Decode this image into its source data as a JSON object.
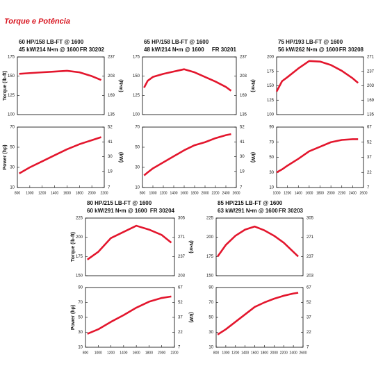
{
  "title": "Torque e Potência",
  "chart_data": [
    {
      "type": "line",
      "title": "60 HP/158 LB-FT @ 1600",
      "subtitle": "45 kW/214 N•m @ 1600",
      "model": "FR 30202",
      "ylabel": "Torque (lb-ft)",
      "y2label": "(N•m)",
      "color": "#e3162d",
      "x": [
        830,
        1000,
        1200,
        1400,
        1600,
        1800,
        2000,
        2150
      ],
      "values": [
        153,
        154,
        155,
        156,
        157,
        155,
        150,
        145
      ],
      "xlim": [
        800,
        2200
      ],
      "ylim": [
        100,
        175
      ],
      "yticks": [
        100,
        125,
        150,
        175
      ],
      "y2lim": [
        135,
        237
      ],
      "y2ticks": [
        135,
        169,
        203,
        237
      ]
    },
    {
      "type": "line",
      "ylabel": "Power (hp)",
      "y2label": "(kW)",
      "color": "#e3162d",
      "x": [
        830,
        1000,
        1200,
        1400,
        1600,
        1800,
        2000,
        2150
      ],
      "values": [
        24,
        30,
        36,
        42,
        48,
        53,
        57,
        60
      ],
      "xlim": [
        800,
        2200
      ],
      "xticks": [
        800,
        1000,
        1200,
        1400,
        1600,
        1800,
        2000,
        2200
      ],
      "ylim": [
        10,
        70
      ],
      "yticks": [
        10,
        30,
        50,
        70
      ],
      "y2lim": [
        7,
        52
      ],
      "y2ticks": [
        7,
        19,
        30,
        41,
        52
      ]
    },
    {
      "type": "line",
      "title": "65 HP/158 LB-FT @ 1600",
      "subtitle": "48 kW/214 N•m @ 1600",
      "model": "FR 30201",
      "y2label": "(N•m)",
      "color": "#e3162d",
      "x": [
        830,
        900,
        1000,
        1200,
        1400,
        1600,
        1800,
        2000,
        2200,
        2400,
        2500
      ],
      "values": [
        135,
        144,
        149,
        153,
        156,
        159,
        155,
        149,
        143,
        136,
        131
      ],
      "xlim": [
        800,
        2600
      ],
      "ylim": [
        100,
        175
      ],
      "yticks": [
        100,
        125,
        150,
        175
      ],
      "y2lim": [
        135,
        237
      ],
      "y2ticks": [
        135,
        169,
        203,
        237
      ]
    },
    {
      "type": "line",
      "y2label": "(kW)",
      "color": "#e3162d",
      "x": [
        830,
        900,
        1000,
        1200,
        1400,
        1600,
        1800,
        2000,
        2200,
        2400,
        2500
      ],
      "values": [
        22,
        25,
        29,
        35,
        41,
        47,
        52,
        55,
        59,
        62,
        63
      ],
      "xlim": [
        800,
        2600
      ],
      "xticks": [
        800,
        1000,
        1200,
        1400,
        1600,
        1800,
        2000,
        2200,
        2400,
        2600
      ],
      "ylim": [
        10,
        70
      ],
      "yticks": [
        10,
        30,
        50,
        70
      ],
      "y2lim": [
        7,
        52
      ],
      "y2ticks": [
        7,
        19,
        30,
        41,
        52
      ]
    },
    {
      "type": "line",
      "title": "75 HP/193 LB-FT @ 1600",
      "subtitle": "56 kW/262 N•m @ 1600",
      "model": "FR 30208",
      "color": "#e3162d",
      "x": [
        1000,
        1100,
        1200,
        1400,
        1600,
        1800,
        2000,
        2200,
        2400,
        2500
      ],
      "values": [
        140,
        158,
        165,
        180,
        193,
        192,
        186,
        176,
        163,
        155
      ],
      "xlim": [
        1000,
        2600
      ],
      "ylim": [
        100,
        200
      ],
      "yticks": [
        100,
        125,
        150,
        175,
        200
      ],
      "y2lim": [
        135,
        271
      ],
      "y2ticks": [
        135,
        169,
        203,
        237,
        271
      ]
    },
    {
      "type": "line",
      "color": "#e3162d",
      "x": [
        1000,
        1100,
        1200,
        1400,
        1600,
        1800,
        2000,
        2200,
        2400,
        2500
      ],
      "values": [
        30,
        34,
        39,
        48,
        58,
        64,
        70,
        73,
        74,
        74
      ],
      "xlim": [
        1000,
        2600
      ],
      "xticks": [
        1000,
        1200,
        1400,
        1600,
        1800,
        2000,
        2200,
        2400,
        2600
      ],
      "ylim": [
        10,
        90
      ],
      "yticks": [
        10,
        30,
        50,
        70,
        90
      ],
      "y2lim": [
        7,
        67
      ],
      "y2ticks": [
        7,
        22,
        37,
        52,
        67
      ]
    },
    {
      "type": "line",
      "title": "80 HP/215 LB-FT @ 1600",
      "subtitle": "60 kW/291 N•m @ 1600",
      "model": "FR 30204",
      "ylabel": "Torque (lb-ft)",
      "y2label": "(N•m)",
      "color": "#e3162d",
      "x": [
        830,
        1000,
        1200,
        1400,
        1600,
        1800,
        2000,
        2150
      ],
      "values": [
        171,
        181,
        199,
        207,
        215,
        210,
        203,
        193
      ],
      "xlim": [
        800,
        2200
      ],
      "ylim": [
        150,
        225
      ],
      "yticks": [
        150,
        175,
        200,
        225
      ],
      "y2lim": [
        203,
        305
      ],
      "y2ticks": [
        203,
        237,
        271,
        305
      ]
    },
    {
      "type": "line",
      "ylabel": "Power (hp)",
      "y2label": "(kW)",
      "color": "#e3162d",
      "x": [
        830,
        1000,
        1200,
        1400,
        1600,
        1800,
        2000,
        2150
      ],
      "values": [
        28,
        34,
        44,
        53,
        63,
        71,
        76,
        78
      ],
      "xlim": [
        800,
        2200
      ],
      "xticks": [
        800,
        1000,
        1200,
        1400,
        1600,
        1800,
        2000,
        2200
      ],
      "ylim": [
        10,
        90
      ],
      "yticks": [
        10,
        30,
        50,
        70,
        90
      ],
      "y2lim": [
        7,
        67
      ],
      "y2ticks": [
        7,
        22,
        37,
        52,
        67
      ]
    },
    {
      "type": "line",
      "title": "85 HP/215 LB-FT @ 1600",
      "subtitle": "63 kW/291 N•m @ 1600",
      "model": "FR 30203",
      "color": "#e3162d",
      "x": [
        830,
        1000,
        1200,
        1400,
        1600,
        1800,
        2000,
        2200,
        2400,
        2500
      ],
      "values": [
        175,
        190,
        202,
        210,
        214,
        209,
        202,
        193,
        181,
        175
      ],
      "xlim": [
        800,
        2600
      ],
      "ylim": [
        150,
        225
      ],
      "yticks": [
        150,
        175,
        200,
        225
      ],
      "y2lim": [
        203,
        305
      ],
      "y2ticks": [
        203,
        237,
        271,
        305
      ]
    },
    {
      "type": "line",
      "color": "#e3162d",
      "x": [
        830,
        1000,
        1200,
        1400,
        1600,
        1800,
        2000,
        2200,
        2400,
        2500
      ],
      "values": [
        27,
        34,
        44,
        54,
        64,
        70,
        75,
        79,
        82,
        83
      ],
      "xlim": [
        800,
        2600
      ],
      "xticks": [
        800,
        1000,
        1200,
        1400,
        1600,
        1800,
        2000,
        2200,
        2400,
        2600
      ],
      "ylim": [
        10,
        90
      ],
      "yticks": [
        10,
        30,
        50,
        70,
        90
      ],
      "y2lim": [
        7,
        67
      ],
      "y2ticks": [
        7,
        22,
        37,
        52,
        67
      ]
    }
  ]
}
